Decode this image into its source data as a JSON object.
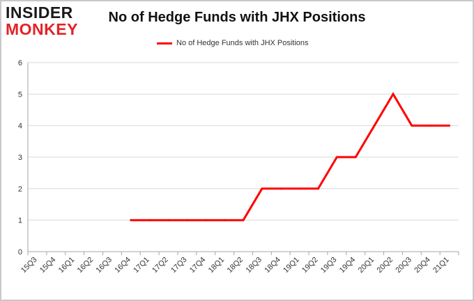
{
  "logo": {
    "line1": "INSIDER",
    "line2": "MONKEY"
  },
  "chart_data": {
    "type": "line",
    "title": "No of Hedge Funds with JHX Positions",
    "xlabel": "",
    "ylabel": "",
    "categories": [
      "15Q3",
      "15Q4",
      "16Q1",
      "16Q2",
      "16Q3",
      "16Q4",
      "17Q1",
      "17Q2",
      "17Q3",
      "17Q4",
      "18Q1",
      "18Q2",
      "18Q3",
      "18Q4",
      "19Q1",
      "19Q2",
      "19Q3",
      "19Q4",
      "20Q1",
      "20Q2",
      "20Q3",
      "20Q4",
      "21Q1"
    ],
    "series": [
      {
        "name": "No of Hedge Funds with JHX Positions",
        "color": "#ff0000",
        "values": [
          null,
          null,
          null,
          null,
          null,
          1,
          1,
          1,
          1,
          1,
          1,
          1,
          2,
          2,
          2,
          2,
          3,
          3,
          4,
          5,
          4,
          4,
          4
        ]
      }
    ],
    "ylim": [
      0,
      6
    ],
    "yticks": [
      0,
      1,
      2,
      3,
      4,
      5,
      6
    ],
    "grid": true,
    "legend_position": "top-center"
  }
}
